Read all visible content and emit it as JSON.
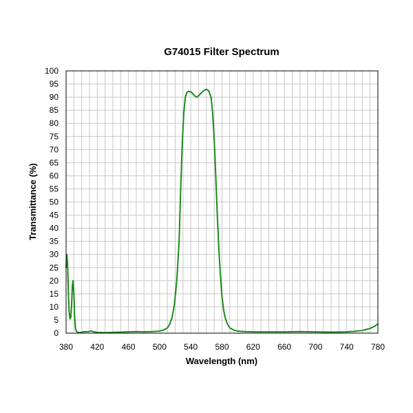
{
  "chart_data": {
    "type": "line",
    "title": "G74015 Filter Spectrum",
    "xlabel": "Wavelength (nm)",
    "ylabel": "Transmittance (%)",
    "xlim": [
      380,
      780
    ],
    "ylim": [
      0,
      100
    ],
    "x_ticks": [
      380,
      420,
      460,
      500,
      540,
      580,
      620,
      660,
      700,
      740,
      780
    ],
    "y_ticks": [
      0,
      5,
      10,
      15,
      20,
      25,
      30,
      35,
      40,
      45,
      50,
      55,
      60,
      65,
      70,
      75,
      80,
      85,
      90,
      95,
      100
    ],
    "x_minor_step": 10,
    "grid": true,
    "legend": "none",
    "colors": {
      "line": "#1a8a1a",
      "grid": "#c8c8c8",
      "frame": "#000000"
    },
    "series": [
      {
        "x": [
          380,
          381,
          382,
          383,
          384,
          385,
          386,
          387,
          388,
          389,
          390,
          391,
          392,
          393,
          395,
          398,
          402,
          408,
          412,
          416,
          420,
          430,
          440,
          460,
          470,
          480,
          490,
          500,
          505,
          510,
          513,
          516,
          519,
          522,
          525,
          527,
          529,
          531,
          533,
          535,
          537,
          540,
          542,
          544,
          546,
          548,
          551,
          554,
          557,
          560,
          563,
          566,
          568,
          570,
          572,
          574,
          576,
          578,
          580,
          582,
          584,
          587,
          590,
          595,
          600,
          610,
          620,
          640,
          660,
          680,
          700,
          720,
          740,
          750,
          760,
          770,
          775,
          780
        ],
        "y": [
          25,
          30,
          26,
          15,
          8,
          5.5,
          6,
          10,
          18,
          20,
          15,
          6,
          2,
          0.8,
          0.3,
          0.2,
          0.5,
          0.6,
          0.8,
          0.5,
          0.3,
          0.2,
          0.3,
          0.5,
          0.6,
          0.5,
          0.6,
          0.8,
          1.2,
          2,
          3.5,
          6,
          11,
          20,
          35,
          55,
          72,
          84,
          90,
          91.8,
          92.2,
          92,
          91.5,
          90.8,
          90.2,
          90,
          90.8,
          91.8,
          92.6,
          93,
          92.4,
          90,
          84,
          74,
          60,
          45,
          32,
          22,
          14,
          9,
          6,
          3.5,
          2,
          1.2,
          0.8,
          0.6,
          0.5,
          0.5,
          0.5,
          0.6,
          0.5,
          0.4,
          0.5,
          0.7,
          1,
          1.8,
          2.5,
          3.5
        ]
      }
    ]
  }
}
